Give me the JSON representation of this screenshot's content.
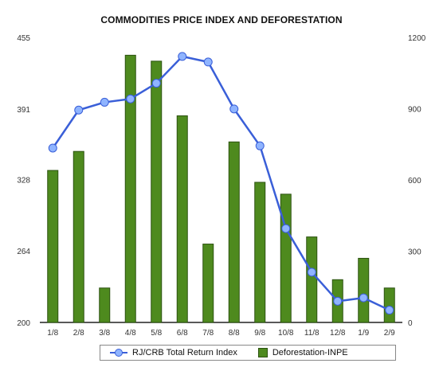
{
  "chart_data": {
    "type": "bar+line",
    "title": "COMMODITIES PRICE INDEX AND DEFORESTATION",
    "categories": [
      "1/8",
      "2/8",
      "3/8",
      "4/8",
      "5/8",
      "6/8",
      "7/8",
      "8/8",
      "9/8",
      "10/8",
      "11/8",
      "12/8",
      "1/9",
      "2/9"
    ],
    "y_left": {
      "ticks": [
        "455",
        "391",
        "328",
        "264",
        "200"
      ],
      "range": [
        200,
        455
      ]
    },
    "y_right": {
      "ticks": [
        "1200",
        "900",
        "600",
        "300",
        "0"
      ],
      "range": [
        0,
        1200
      ]
    },
    "series": [
      {
        "name": "RJ/CRB Total Return Index",
        "kind": "line",
        "axis": "left",
        "color": "#3a5fd8",
        "values": [
          356,
          390,
          397,
          400,
          414,
          438,
          433,
          391,
          358,
          284,
          245,
          219,
          222,
          211
        ]
      },
      {
        "name": "Deforestation-INPE",
        "kind": "bar",
        "axis": "right",
        "color": "#4e8a1e",
        "values": [
          640,
          720,
          145,
          1125,
          1100,
          870,
          330,
          760,
          590,
          540,
          360,
          180,
          270,
          145
        ]
      }
    ],
    "grid": false,
    "legend": "bottom"
  }
}
